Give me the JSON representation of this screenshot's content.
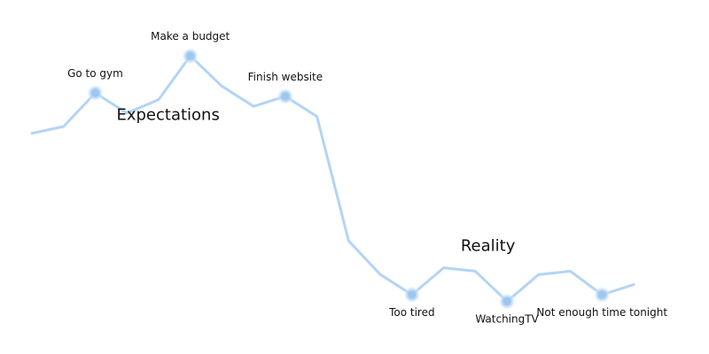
{
  "chart_data": {
    "type": "line",
    "title": "",
    "xlabel": "",
    "ylabel": "",
    "grid": false,
    "line_color": "#b3d4f5",
    "marker_color": "#9ec7f0",
    "x": [
      0,
      1,
      2,
      3,
      4,
      5,
      6,
      7,
      8,
      9,
      10,
      11,
      12,
      13,
      14,
      15,
      16,
      17,
      18,
      19
    ],
    "xlim": [
      0,
      19
    ],
    "y": [
      63,
      65,
      75,
      69,
      73,
      86,
      77,
      71,
      74,
      68,
      31,
      21,
      15,
      23,
      22,
      13,
      21,
      22,
      15,
      18
    ],
    "ylim": [
      0,
      100
    ],
    "annotations": [
      {
        "index": 2,
        "text": "Go to gym",
        "position": "above"
      },
      {
        "index": 5,
        "text": "Make a budget",
        "position": "above"
      },
      {
        "index": 8,
        "text": "Finish website",
        "position": "above"
      },
      {
        "index": 12,
        "text": "Too tired",
        "position": "below"
      },
      {
        "index": 15,
        "text": "WatchingTV",
        "position": "below"
      },
      {
        "index": 18,
        "text": "Not enough time tonight",
        "position": "below"
      }
    ],
    "region_labels": [
      {
        "text": "Expectations",
        "x": 4.3,
        "y": 67
      },
      {
        "text": "Reality",
        "x": 14.4,
        "y": 28
      }
    ]
  }
}
